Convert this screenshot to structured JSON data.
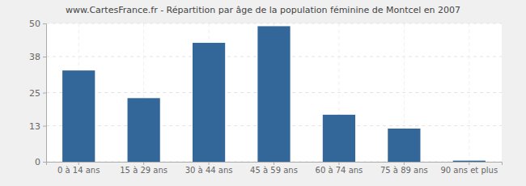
{
  "chart_data": {
    "type": "bar",
    "title": "www.CartesFrance.fr - Répartition par âge de la population féminine de Montcel en 2007",
    "categories": [
      "0 à 14 ans",
      "15 à 29 ans",
      "30 à 44 ans",
      "45 à 59 ans",
      "60 à 74 ans",
      "75 à 89 ans",
      "90 ans et plus"
    ],
    "values": [
      33,
      23,
      43,
      49,
      17,
      12,
      0.4
    ],
    "color": "#336699",
    "ylim": [
      0,
      50
    ],
    "yticks": [
      0,
      13,
      25,
      38,
      50
    ],
    "grid": true
  }
}
